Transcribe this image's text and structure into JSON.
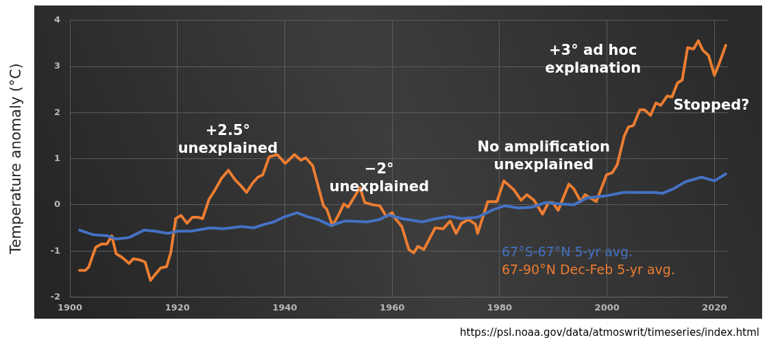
{
  "chart_data": {
    "type": "line",
    "ylabel": "Temperature anomaly (°C)",
    "xlim": [
      1900,
      2022.5
    ],
    "xticks": [
      1900,
      1920,
      1940,
      1960,
      1980,
      2000,
      2020
    ],
    "ylim": [
      -2,
      4
    ],
    "yticks": [
      -2,
      -1,
      0,
      1,
      2,
      3,
      4
    ],
    "grid": true,
    "marker": "none",
    "line_style": "solid",
    "legend": "bottom right",
    "series": [
      {
        "name": "67°S-67°N 5-yr avg.",
        "color": "#4472c4",
        "x": [
          1901.8,
          1904.4,
          1906.9,
          1908.6,
          1911,
          1913.8,
          1915.8,
          1918.2,
          1920.1,
          1922.6,
          1926.1,
          1928.6,
          1932,
          1934.2,
          1936.3,
          1938,
          1939.7,
          1942.3,
          1944,
          1946.2,
          1948.6,
          1951.2,
          1955.4,
          1957.6,
          1959.3,
          1961.8,
          1965.6,
          1968.2,
          1970.8,
          1972.9,
          1975.9,
          1978.9,
          1981,
          1983.5,
          1986.1,
          1988.6,
          1991.2,
          1993.8,
          1996.3,
          2000.1,
          2003.1,
          2006.1,
          2008.6,
          2010.3,
          2012.4,
          2014.6,
          2017.6,
          2020,
          2022.1
        ],
        "values": [
          -0.55,
          -0.65,
          -0.67,
          -0.74,
          -0.71,
          -0.55,
          -0.57,
          -0.62,
          -0.57,
          -0.57,
          -0.5,
          -0.52,
          -0.47,
          -0.5,
          -0.42,
          -0.37,
          -0.27,
          -0.17,
          -0.25,
          -0.32,
          -0.45,
          -0.35,
          -0.37,
          -0.32,
          -0.22,
          -0.3,
          -0.37,
          -0.3,
          -0.25,
          -0.3,
          -0.27,
          -0.1,
          -0.02,
          -0.07,
          -0.05,
          0.05,
          0.02,
          0,
          0.15,
          0.2,
          0.27,
          0.27,
          0.27,
          0.25,
          0.35,
          0.5,
          0.6,
          0.52,
          0.67
        ]
      },
      {
        "name": "67-90°N Dec-Feb 5-yr avg.",
        "color": "#ed7d31",
        "x": [
          1901.8,
          1902.9,
          1903.5,
          1904.8,
          1905.9,
          1906.9,
          1907.8,
          1908.6,
          1909.7,
          1911,
          1911.8,
          1912.9,
          1914,
          1915,
          1915.8,
          1916.9,
          1918,
          1918.8,
          1919.7,
          1920.7,
          1921.8,
          1922.8,
          1923.9,
          1924.7,
          1925.9,
          1927,
          1928.2,
          1929.5,
          1930.7,
          1931.8,
          1932.9,
          1934,
          1935,
          1935.9,
          1937.1,
          1938.6,
          1940.1,
          1941.8,
          1943,
          1943.9,
          1945.2,
          1947.2,
          1947.8,
          1948.9,
          1950,
          1951,
          1951.8,
          1954,
          1954.9,
          1956.4,
          1957.7,
          1958.9,
          1960,
          1960.6,
          1961.8,
          1963.1,
          1964,
          1964.8,
          1965.9,
          1968,
          1969.5,
          1970.8,
          1971.9,
          1972.9,
          1974.2,
          1975.5,
          1975.9,
          1977.8,
          1979.5,
          1980.8,
          1982.7,
          1984,
          1985.1,
          1986.4,
          1988,
          1989.1,
          1989.9,
          1990.9,
          1992.9,
          1993.8,
          1995.1,
          1995.9,
          1998,
          1999.9,
          2001,
          2001.9,
          2003.2,
          2004,
          2004.9,
          2006.1,
          2007,
          2008.1,
          2009.1,
          2010,
          2011.2,
          2012.1,
          2013.1,
          2014,
          2015,
          2016.1,
          2017,
          2017.8,
          2018.9,
          2020,
          2020.8,
          2022.1
        ],
        "values": [
          -1.42,
          -1.42,
          -1.35,
          -0.92,
          -0.85,
          -0.85,
          -0.67,
          -1.06,
          -1.14,
          -1.27,
          -1.17,
          -1.19,
          -1.24,
          -1.64,
          -1.52,
          -1.37,
          -1.34,
          -1.03,
          -0.3,
          -0.23,
          -0.4,
          -0.27,
          -0.27,
          -0.3,
          0.12,
          0.32,
          0.57,
          0.75,
          0.55,
          0.42,
          0.27,
          0.47,
          0.6,
          0.65,
          1.04,
          1.09,
          0.9,
          1.09,
          0.97,
          1.02,
          0.85,
          -0.02,
          -0.09,
          -0.45,
          -0.22,
          0.02,
          -0.05,
          0.37,
          0.05,
          0,
          -0.02,
          -0.25,
          -0.17,
          -0.3,
          -0.47,
          -0.97,
          -1.04,
          -0.9,
          -0.97,
          -0.5,
          -0.52,
          -0.35,
          -0.62,
          -0.4,
          -0.32,
          -0.42,
          -0.62,
          0.07,
          0.07,
          0.52,
          0.32,
          0.1,
          0.22,
          0.1,
          -0.2,
          0.05,
          0.05,
          -0.12,
          0.45,
          0.35,
          0.07,
          0.22,
          0.07,
          0.65,
          0.7,
          0.87,
          1.49,
          1.69,
          1.72,
          2.06,
          2.06,
          1.94,
          2.21,
          2.16,
          2.36,
          2.34,
          2.64,
          2.71,
          3.41,
          3.38,
          3.56,
          3.36,
          3.24,
          2.81,
          3.04,
          3.46
        ]
      }
    ],
    "annotations": [
      "+2.5°\nunexplained",
      "−2°\nunexplained",
      "No amplification\nunexplained",
      "+3° ad hoc\nexplanation",
      "Stopped?",
      "https://psl.noaa.gov/data/atmoswrit/timeseries/index.html"
    ]
  }
}
